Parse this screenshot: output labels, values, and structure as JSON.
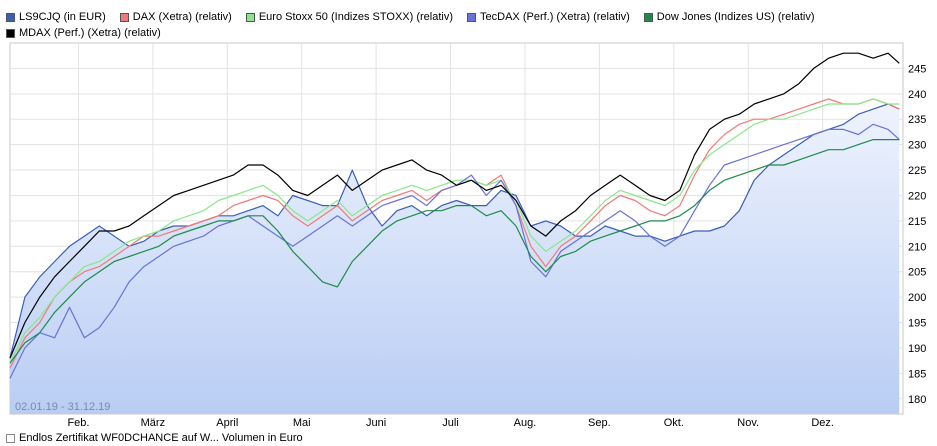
{
  "legend": {
    "row1": [
      {
        "label": "LS9CJQ (in EUR)",
        "color": "#3a5fb8"
      },
      {
        "label": "DAX (Xetra) (relativ)",
        "color": "#f07a7a"
      },
      {
        "label": "Euro Stoxx 50 (Indizes STOXX) (relativ)",
        "color": "#88e888"
      },
      {
        "label": "TecDAX (Perf.) (Xetra) (relativ)",
        "color": "#6a72d8"
      },
      {
        "label": "Dow Jones (Indizes US) (relativ)",
        "color": "#1e8a4a"
      }
    ],
    "row2": [
      {
        "label": "MDAX (Perf.) (Xetra) (relativ)",
        "color": "#000000"
      }
    ]
  },
  "footer": {
    "label": "Endlos Zertifikat WF0DCHANCE auf W... Volumen in Euro"
  },
  "chart_data": {
    "type": "line",
    "date_range_label": "02.01.19 - 31.12.19",
    "x_ticks": [
      "Feb.",
      "März",
      "April",
      "Mai",
      "Juni",
      "Juli",
      "Aug.",
      "Sep.",
      "Okt.",
      "Nov.",
      "Dez."
    ],
    "y_ticks": [
      180,
      185,
      190,
      195,
      200,
      205,
      210,
      215,
      220,
      225,
      230,
      235,
      240,
      245
    ],
    "ylim": [
      177,
      250
    ],
    "xlim": [
      0,
      12
    ],
    "grid": true,
    "y_axis_side": "right",
    "legend_position": "top",
    "series": [
      {
        "name": "LS9CJQ (in EUR)",
        "color": "#3a5fb8",
        "area_fill": true,
        "x": [
          0,
          0.2,
          0.4,
          0.6,
          0.8,
          1,
          1.2,
          1.4,
          1.6,
          1.8,
          2,
          2.2,
          2.4,
          2.6,
          2.8,
          3,
          3.2,
          3.4,
          3.6,
          3.8,
          4,
          4.2,
          4.4,
          4.6,
          4.8,
          5,
          5.2,
          5.4,
          5.6,
          5.8,
          6,
          6.2,
          6.4,
          6.6,
          6.8,
          7,
          7.2,
          7.4,
          7.6,
          7.8,
          8,
          8.2,
          8.4,
          8.6,
          8.8,
          9,
          9.2,
          9.4,
          9.6,
          9.8,
          10,
          10.2,
          10.4,
          10.6,
          10.8,
          11,
          11.2,
          11.4,
          11.6,
          11.8,
          11.95
        ],
        "values": [
          188,
          200,
          204,
          207,
          210,
          212,
          214,
          212,
          210,
          211,
          213,
          214,
          214,
          215,
          216,
          216,
          217,
          218,
          216,
          220,
          219,
          218,
          218,
          225,
          218,
          214,
          217,
          218,
          216,
          218,
          219,
          218,
          218,
          221,
          220,
          214,
          215,
          214,
          212,
          212,
          214,
          213,
          212,
          212,
          211,
          212,
          213,
          213,
          214,
          217,
          223,
          226,
          228,
          230,
          232,
          233,
          234,
          236,
          237,
          238,
          237
        ]
      },
      {
        "name": "DAX (Xetra) (relativ)",
        "color": "#f07a7a",
        "x": [
          0,
          0.2,
          0.4,
          0.6,
          0.8,
          1,
          1.2,
          1.4,
          1.6,
          1.8,
          2,
          2.2,
          2.4,
          2.6,
          2.8,
          3,
          3.2,
          3.4,
          3.6,
          3.8,
          4,
          4.2,
          4.4,
          4.6,
          4.8,
          5,
          5.2,
          5.4,
          5.6,
          5.8,
          6,
          6.2,
          6.4,
          6.6,
          6.8,
          7,
          7.2,
          7.4,
          7.6,
          7.8,
          8,
          8.2,
          8.4,
          8.6,
          8.8,
          9,
          9.2,
          9.4,
          9.6,
          9.8,
          10,
          10.2,
          10.4,
          10.6,
          10.8,
          11,
          11.2,
          11.4,
          11.6,
          11.8,
          11.95
        ],
        "values": [
          186,
          192,
          195,
          200,
          203,
          205,
          206,
          208,
          210,
          212,
          212,
          213,
          214,
          215,
          216,
          218,
          219,
          220,
          219,
          216,
          214,
          216,
          218,
          215,
          217,
          219,
          220,
          221,
          219,
          221,
          222,
          223,
          222,
          224,
          218,
          210,
          206,
          210,
          212,
          215,
          218,
          220,
          219,
          217,
          216,
          218,
          224,
          229,
          232,
          234,
          235,
          235,
          236,
          237,
          238,
          239,
          238,
          238,
          239,
          238,
          237
        ]
      },
      {
        "name": "Euro Stoxx 50 (Indizes STOXX) (relativ)",
        "color": "#88e888",
        "x": [
          0,
          0.2,
          0.4,
          0.6,
          0.8,
          1,
          1.2,
          1.4,
          1.6,
          1.8,
          2,
          2.2,
          2.4,
          2.6,
          2.8,
          3,
          3.2,
          3.4,
          3.6,
          3.8,
          4,
          4.2,
          4.4,
          4.6,
          4.8,
          5,
          5.2,
          5.4,
          5.6,
          5.8,
          6,
          6.2,
          6.4,
          6.6,
          6.8,
          7,
          7.2,
          7.4,
          7.6,
          7.8,
          8,
          8.2,
          8.4,
          8.6,
          8.8,
          9,
          9.2,
          9.4,
          9.6,
          9.8,
          10,
          10.2,
          10.4,
          10.6,
          10.8,
          11,
          11.2,
          11.4,
          11.6,
          11.8,
          11.95
        ],
        "values": [
          187,
          193,
          196,
          200,
          203,
          206,
          207,
          209,
          211,
          212,
          213,
          215,
          216,
          217,
          219,
          220,
          221,
          222,
          220,
          217,
          215,
          217,
          219,
          216,
          218,
          220,
          221,
          222,
          221,
          222,
          223,
          223,
          222,
          223,
          219,
          212,
          209,
          211,
          213,
          216,
          219,
          221,
          220,
          219,
          218,
          220,
          225,
          228,
          230,
          232,
          234,
          235,
          235,
          236,
          237,
          238,
          238,
          238,
          239,
          238,
          238
        ]
      },
      {
        "name": "TecDAX (Perf.) (Xetra) (relativ)",
        "color": "#6a72d8",
        "x": [
          0,
          0.2,
          0.4,
          0.6,
          0.8,
          1,
          1.2,
          1.4,
          1.6,
          1.8,
          2,
          2.2,
          2.4,
          2.6,
          2.8,
          3,
          3.2,
          3.4,
          3.6,
          3.8,
          4,
          4.2,
          4.4,
          4.6,
          4.8,
          5,
          5.2,
          5.4,
          5.6,
          5.8,
          6,
          6.2,
          6.4,
          6.6,
          6.8,
          7,
          7.2,
          7.4,
          7.6,
          7.8,
          8,
          8.2,
          8.4,
          8.6,
          8.8,
          9,
          9.2,
          9.4,
          9.6,
          9.8,
          10,
          10.2,
          10.4,
          10.6,
          10.8,
          11,
          11.2,
          11.4,
          11.6,
          11.8,
          11.95
        ],
        "values": [
          184,
          190,
          193,
          192,
          198,
          192,
          194,
          198,
          203,
          206,
          208,
          210,
          211,
          212,
          214,
          215,
          216,
          214,
          212,
          210,
          212,
          214,
          216,
          214,
          216,
          218,
          219,
          220,
          218,
          221,
          222,
          224,
          220,
          223,
          218,
          207,
          204,
          209,
          211,
          213,
          215,
          217,
          215,
          212,
          210,
          212,
          217,
          222,
          226,
          227,
          228,
          229,
          230,
          231,
          232,
          233,
          233,
          232,
          234,
          233,
          231
        ]
      },
      {
        "name": "Dow Jones (Indizes US) (relativ)",
        "color": "#1e8a4a",
        "x": [
          0,
          0.2,
          0.4,
          0.6,
          0.8,
          1,
          1.2,
          1.4,
          1.6,
          1.8,
          2,
          2.2,
          2.4,
          2.6,
          2.8,
          3,
          3.2,
          3.4,
          3.6,
          3.8,
          4,
          4.2,
          4.4,
          4.6,
          4.8,
          5,
          5.2,
          5.4,
          5.6,
          5.8,
          6,
          6.2,
          6.4,
          6.6,
          6.8,
          7,
          7.2,
          7.4,
          7.6,
          7.8,
          8,
          8.2,
          8.4,
          8.6,
          8.8,
          9,
          9.2,
          9.4,
          9.6,
          9.8,
          10,
          10.2,
          10.4,
          10.6,
          10.8,
          11,
          11.2,
          11.4,
          11.6,
          11.8,
          11.95
        ],
        "values": [
          187,
          191,
          193,
          197,
          200,
          203,
          205,
          207,
          208,
          209,
          210,
          212,
          213,
          214,
          215,
          215,
          216,
          216,
          213,
          209,
          206,
          203,
          202,
          207,
          210,
          213,
          215,
          216,
          217,
          217,
          218,
          218,
          216,
          217,
          214,
          208,
          205,
          208,
          209,
          211,
          212,
          213,
          214,
          215,
          215,
          216,
          218,
          221,
          223,
          224,
          225,
          226,
          226,
          227,
          228,
          229,
          229,
          230,
          231,
          231,
          231
        ]
      },
      {
        "name": "MDAX (Perf.) (Xetra) (relativ)",
        "color": "#000000",
        "x": [
          0,
          0.2,
          0.4,
          0.6,
          0.8,
          1,
          1.2,
          1.4,
          1.6,
          1.8,
          2,
          2.2,
          2.4,
          2.6,
          2.8,
          3,
          3.2,
          3.4,
          3.6,
          3.8,
          4,
          4.2,
          4.4,
          4.6,
          4.8,
          5,
          5.2,
          5.4,
          5.6,
          5.8,
          6,
          6.2,
          6.4,
          6.6,
          6.8,
          7,
          7.2,
          7.4,
          7.6,
          7.8,
          8,
          8.2,
          8.4,
          8.6,
          8.8,
          9,
          9.2,
          9.4,
          9.6,
          9.8,
          10,
          10.2,
          10.4,
          10.6,
          10.8,
          11,
          11.2,
          11.4,
          11.6,
          11.8,
          11.95
        ],
        "values": [
          188,
          195,
          200,
          204,
          207,
          210,
          213,
          213,
          214,
          216,
          218,
          220,
          221,
          222,
          223,
          224,
          226,
          226,
          224,
          221,
          220,
          222,
          224,
          221,
          223,
          225,
          226,
          227,
          225,
          224,
          222,
          223,
          221,
          222,
          219,
          214,
          212,
          215,
          217,
          220,
          222,
          224,
          222,
          220,
          219,
          221,
          228,
          233,
          235,
          236,
          238,
          239,
          240,
          242,
          245,
          247,
          248,
          248,
          247,
          248,
          246
        ]
      }
    ]
  }
}
